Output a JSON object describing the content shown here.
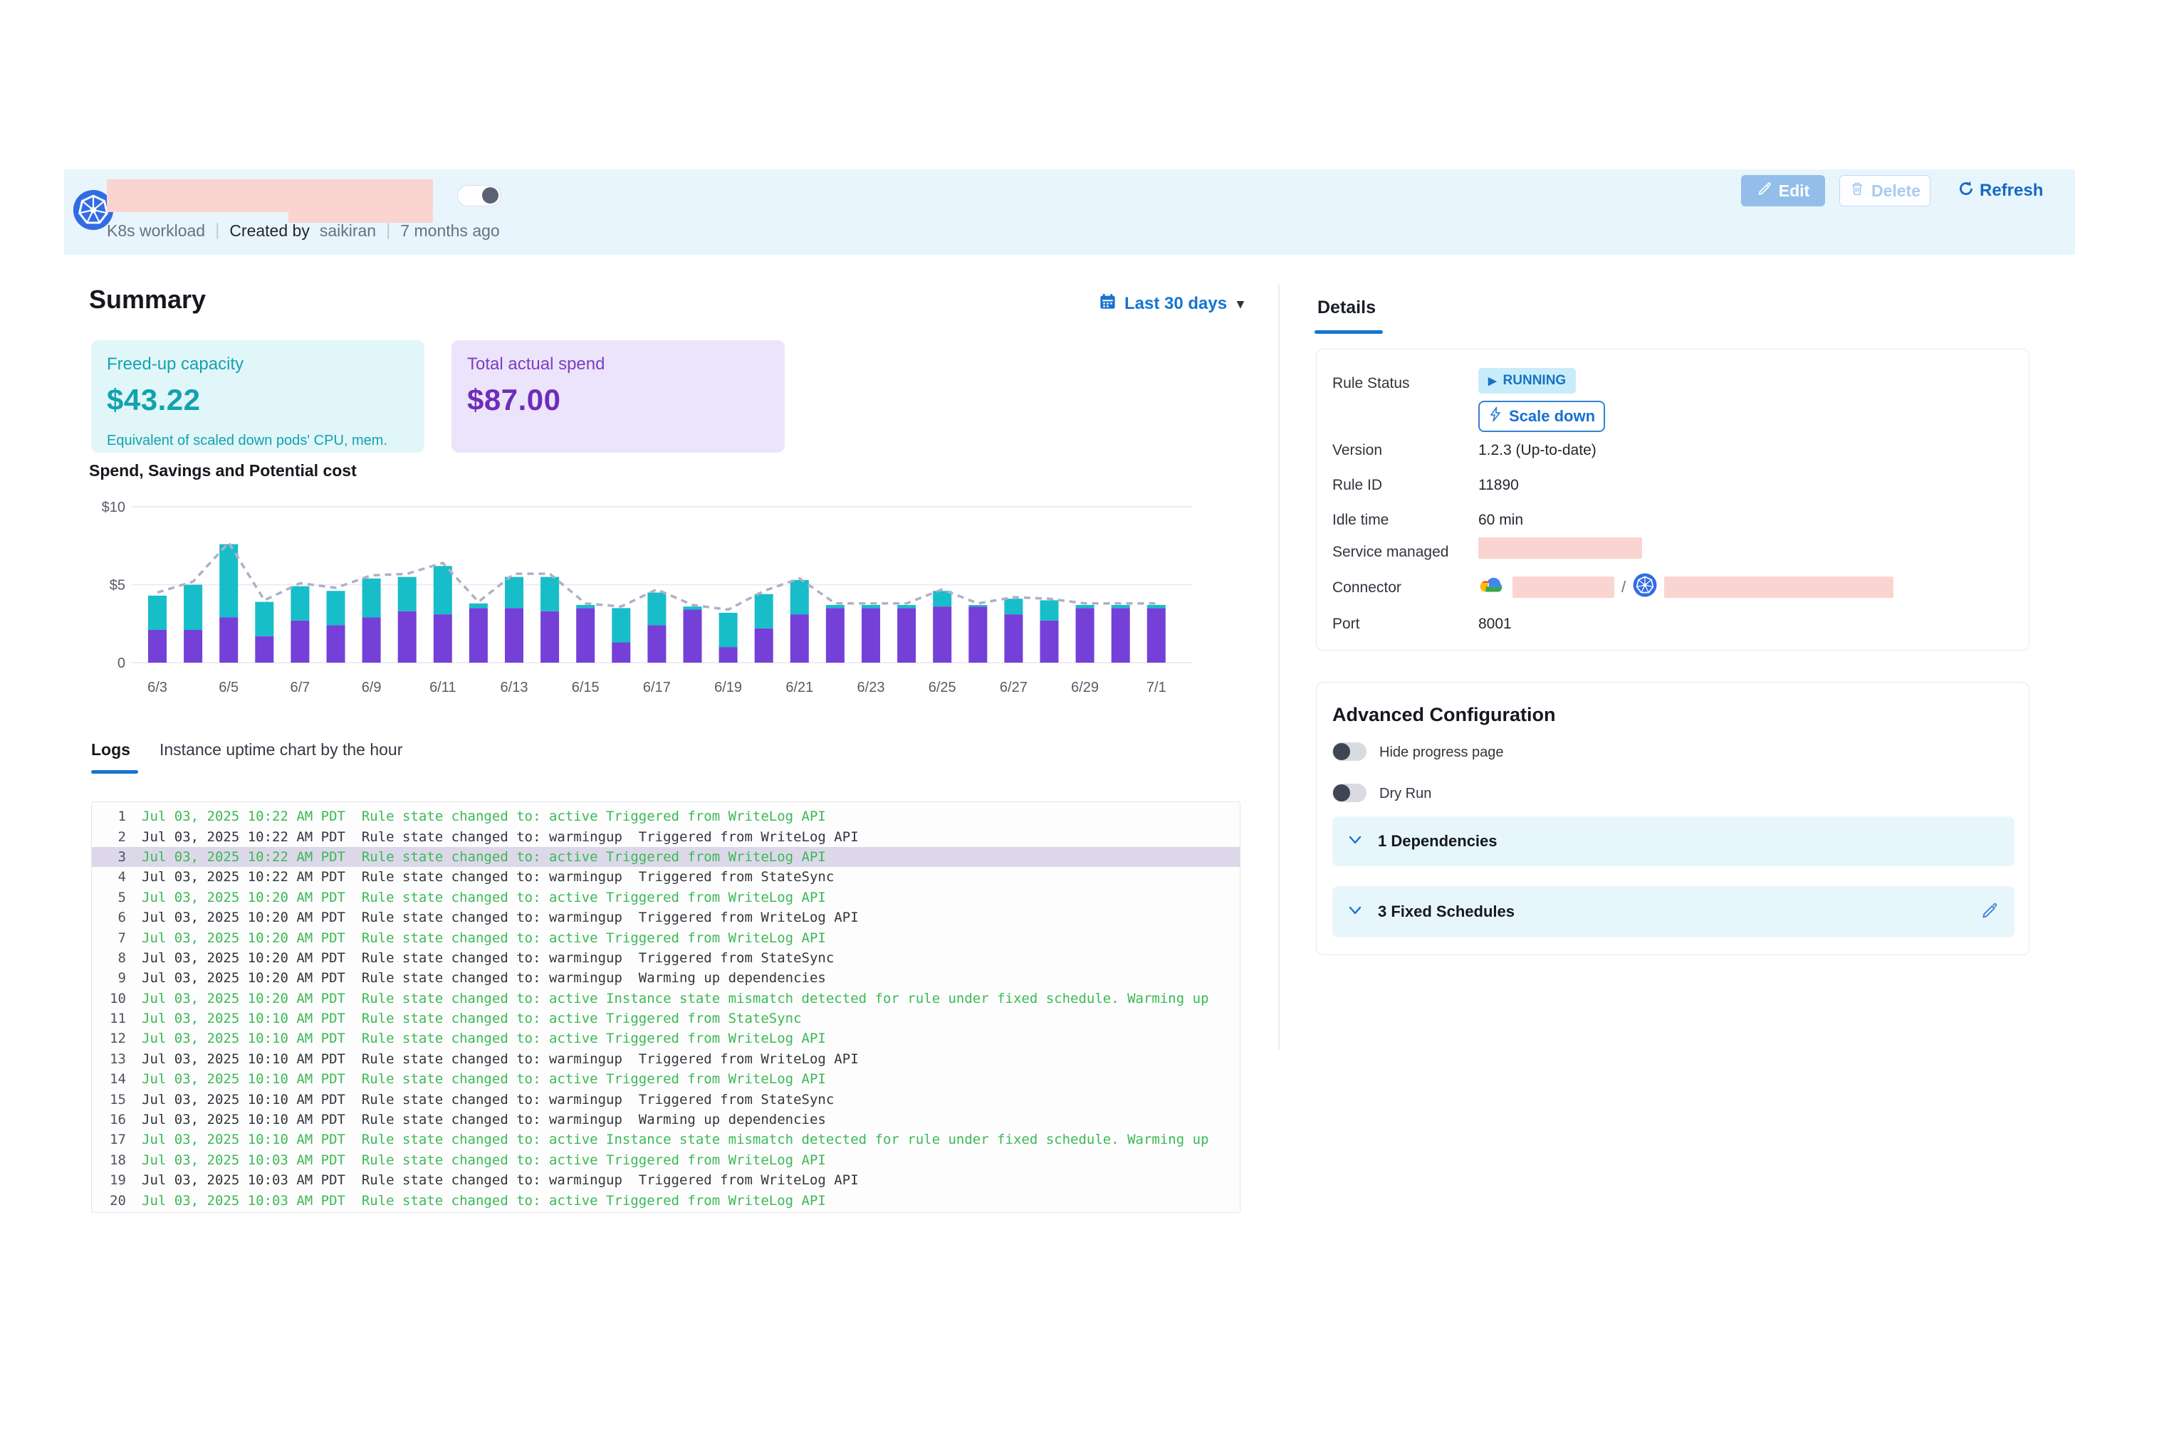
{
  "header": {
    "workload_type": "K8s workload",
    "created_by_label": "Created by",
    "created_by": "saikiran",
    "created_ago": "7 months ago",
    "edit_label": "Edit",
    "delete_label": "Delete",
    "refresh_label": "Refresh"
  },
  "summary": {
    "title": "Summary",
    "date_range": "Last 30 days",
    "cards": [
      {
        "label": "Freed-up capacity",
        "value": "$43.22",
        "note": "Equivalent of scaled down pods' CPU, mem."
      },
      {
        "label": "Total actual spend",
        "value": "$87.00",
        "note": ""
      }
    ]
  },
  "chart_data": {
    "type": "bar",
    "title": "Spend, Savings and Potential cost",
    "stacked": true,
    "ylim": [
      0,
      10
    ],
    "yticks": [
      {
        "label": "0",
        "value": 0
      },
      {
        "label": "$5",
        "value": 5
      },
      {
        "label": "$10",
        "value": 10
      }
    ],
    "categories": [
      "6/3",
      "6/4",
      "6/5",
      "6/6",
      "6/7",
      "6/8",
      "6/9",
      "6/10",
      "6/11",
      "6/12",
      "6/13",
      "6/14",
      "6/15",
      "6/16",
      "6/17",
      "6/18",
      "6/19",
      "6/20",
      "6/21",
      "6/22",
      "6/23",
      "6/24",
      "6/25",
      "6/26",
      "6/27",
      "6/28",
      "6/29",
      "6/30",
      "7/1"
    ],
    "x_labels_shown_every": 2,
    "series": [
      {
        "name": "Spend",
        "type": "bar",
        "color": "#7440d8",
        "values": [
          2.1,
          2.1,
          2.9,
          1.7,
          2.7,
          2.4,
          2.9,
          3.3,
          3.1,
          3.5,
          3.5,
          3.3,
          3.5,
          1.3,
          2.4,
          3.4,
          1.0,
          2.2,
          3.1,
          3.5,
          3.5,
          3.5,
          3.6,
          3.6,
          3.1,
          2.7,
          3.5,
          3.5,
          3.5
        ]
      },
      {
        "name": "Savings",
        "type": "bar",
        "color": "#17bdc9",
        "values": [
          2.2,
          2.9,
          4.7,
          2.2,
          2.2,
          2.2,
          2.5,
          2.2,
          3.1,
          0.3,
          2.0,
          2.2,
          0.2,
          2.2,
          2.1,
          0.2,
          2.2,
          2.2,
          2.2,
          0.2,
          0.2,
          0.2,
          1.0,
          0.1,
          1.0,
          1.3,
          0.2,
          0.2,
          0.2
        ]
      },
      {
        "name": "Potential cost",
        "type": "line",
        "style": "dashed",
        "color": "#b2aec6",
        "values": [
          4.5,
          5.2,
          7.7,
          4.0,
          5.1,
          4.8,
          5.6,
          5.7,
          6.4,
          3.9,
          5.7,
          5.7,
          3.8,
          3.6,
          4.7,
          3.7,
          3.4,
          4.6,
          5.4,
          3.8,
          3.8,
          3.8,
          4.7,
          3.8,
          4.2,
          4.1,
          3.8,
          3.8,
          3.8
        ]
      }
    ]
  },
  "logs": {
    "tabs": [
      "Logs",
      "Instance uptime chart by the hour"
    ],
    "active_tab": "Logs",
    "entries": [
      {
        "n": 1,
        "time": "Jul 03, 2025 10:22 AM PDT",
        "msg": "Rule state changed to: active Triggered from WriteLog API",
        "state": "active",
        "selected": false
      },
      {
        "n": 2,
        "time": "Jul 03, 2025 10:22 AM PDT",
        "msg": "Rule state changed to: warmingup  Triggered from WriteLog API",
        "state": "warmingup",
        "selected": false
      },
      {
        "n": 3,
        "time": "Jul 03, 2025 10:22 AM PDT",
        "msg": "Rule state changed to: active Triggered from WriteLog API",
        "state": "active",
        "selected": true
      },
      {
        "n": 4,
        "time": "Jul 03, 2025 10:22 AM PDT",
        "msg": "Rule state changed to: warmingup  Triggered from StateSync",
        "state": "warmingup",
        "selected": false
      },
      {
        "n": 5,
        "time": "Jul 03, 2025 10:20 AM PDT",
        "msg": "Rule state changed to: active Triggered from WriteLog API",
        "state": "active",
        "selected": false
      },
      {
        "n": 6,
        "time": "Jul 03, 2025 10:20 AM PDT",
        "msg": "Rule state changed to: warmingup  Triggered from WriteLog API",
        "state": "warmingup",
        "selected": false
      },
      {
        "n": 7,
        "time": "Jul 03, 2025 10:20 AM PDT",
        "msg": "Rule state changed to: active Triggered from WriteLog API",
        "state": "active",
        "selected": false
      },
      {
        "n": 8,
        "time": "Jul 03, 2025 10:20 AM PDT",
        "msg": "Rule state changed to: warmingup  Triggered from StateSync",
        "state": "warmingup",
        "selected": false
      },
      {
        "n": 9,
        "time": "Jul 03, 2025 10:20 AM PDT",
        "msg": "Rule state changed to: warmingup  Warming up dependencies",
        "state": "warmingup",
        "selected": false
      },
      {
        "n": 10,
        "time": "Jul 03, 2025 10:20 AM PDT",
        "msg": "Rule state changed to: active Instance state mismatch detected for rule under fixed schedule. Warming up",
        "state": "active",
        "selected": false
      },
      {
        "n": 11,
        "time": "Jul 03, 2025 10:10 AM PDT",
        "msg": "Rule state changed to: active Triggered from StateSync",
        "state": "active",
        "selected": false
      },
      {
        "n": 12,
        "time": "Jul 03, 2025 10:10 AM PDT",
        "msg": "Rule state changed to: active Triggered from WriteLog API",
        "state": "active",
        "selected": false
      },
      {
        "n": 13,
        "time": "Jul 03, 2025 10:10 AM PDT",
        "msg": "Rule state changed to: warmingup  Triggered from WriteLog API",
        "state": "warmingup",
        "selected": false
      },
      {
        "n": 14,
        "time": "Jul 03, 2025 10:10 AM PDT",
        "msg": "Rule state changed to: active Triggered from WriteLog API",
        "state": "active",
        "selected": false
      },
      {
        "n": 15,
        "time": "Jul 03, 2025 10:10 AM PDT",
        "msg": "Rule state changed to: warmingup  Triggered from StateSync",
        "state": "warmingup",
        "selected": false
      },
      {
        "n": 16,
        "time": "Jul 03, 2025 10:10 AM PDT",
        "msg": "Rule state changed to: warmingup  Warming up dependencies",
        "state": "warmingup",
        "selected": false
      },
      {
        "n": 17,
        "time": "Jul 03, 2025 10:10 AM PDT",
        "msg": "Rule state changed to: active Instance state mismatch detected for rule under fixed schedule. Warming up",
        "state": "active",
        "selected": false
      },
      {
        "n": 18,
        "time": "Jul 03, 2025 10:03 AM PDT",
        "msg": "Rule state changed to: active Triggered from WriteLog API",
        "state": "active",
        "selected": false
      },
      {
        "n": 19,
        "time": "Jul 03, 2025 10:03 AM PDT",
        "msg": "Rule state changed to: warmingup  Triggered from WriteLog API",
        "state": "warmingup",
        "selected": false
      },
      {
        "n": 20,
        "time": "Jul 03, 2025 10:03 AM PDT",
        "msg": "Rule state changed to: active Triggered from WriteLog API",
        "state": "active",
        "selected": false
      }
    ]
  },
  "details": {
    "tab": "Details",
    "rule_status_label": "Rule Status",
    "rule_status": "RUNNING",
    "scale_down_label": "Scale down",
    "version_label": "Version",
    "version": "1.2.3 (Up-to-date)",
    "rule_id_label": "Rule ID",
    "rule_id": "11890",
    "idle_label": "Idle time",
    "idle": "60 min",
    "service_managed_label": "Service managed",
    "connector_label": "Connector",
    "connector_separator": "/",
    "port_label": "Port",
    "port": "8001"
  },
  "advanced": {
    "title": "Advanced Configuration",
    "toggles": [
      {
        "label": "Hide progress page",
        "on": false
      },
      {
        "label": "Dry Run",
        "on": false
      }
    ],
    "dependencies_label": "1 Dependencies",
    "schedules_label": "3 Fixed Schedules"
  },
  "icons": {
    "play": "▶",
    "caret_down": "▾",
    "separator_bar": "|"
  },
  "colors": {
    "accent_blue": "#1774d1",
    "band_blue": "#e9f5fc",
    "bar_purple": "#7440d8",
    "bar_teal": "#17bdc9",
    "dashed_line": "#b2aec6",
    "log_green": "#3bb954",
    "redaction_pink": "#fad4d0",
    "teal_card_bg": "#e1f6f8",
    "purple_card_bg": "#ece4fa"
  }
}
